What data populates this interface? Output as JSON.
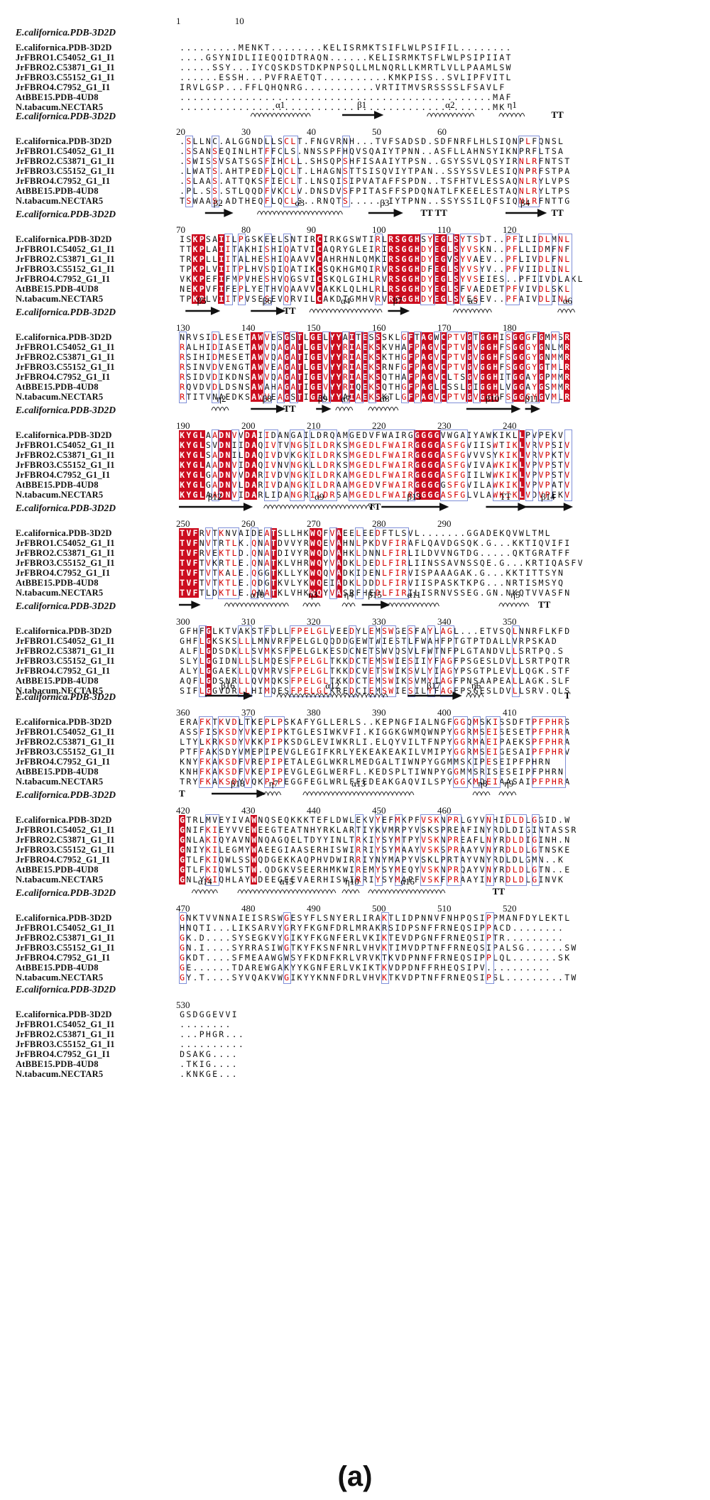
{
  "reference_name": "E.californica.PDB-3D2D",
  "sequence_names": [
    "E.californica.PDB-3D2D",
    "JrFBRO1.C54052_G1_I1",
    "JrFBRO2.C53871_G1_I1",
    "JrFBRO3.C55152_G1_I1",
    "JrFBRO4.C7952_G1_I1",
    "AtBBE15.PDB-4UD8",
    "N.tabacum.NECTAR5"
  ],
  "caption": "(a)",
  "colors": {
    "conserved_bg": "#cc0d1f",
    "similar_text": "#d40000",
    "box_border": "#7f8fd8"
  },
  "blocks": [
    {
      "start": 1,
      "numbers": [
        {
          "pos": 1,
          "label": "1"
        },
        {
          "pos": 10,
          "label": "10"
        }
      ],
      "rows": [
        ".........MENKT........KELISRMKTSIFLWLPSIFIL........",
        "....GSYNIDLIIEQQIDTRAQN......KELISRMKTSFLWLPSIPIIAT",
        ".....SSY...IYCQSKDSTDKPNPSQLLMLNQRLLKMRTLVLLPAAMLSW",
        "......ESSH...PVFRAETQT..........KMKPISS..SVLIPFVITL",
        "IRVLGSP...FFLQHQNRG...........VRTITMVSRSSSSLFSAVLF",
        "................................................MAF",
        "................................................MK"
      ]
    },
    {
      "start": 20,
      "numbers": [
        {
          "pos": 20,
          "label": "20"
        },
        {
          "pos": 30,
          "label": "30"
        },
        {
          "pos": 40,
          "label": "40"
        },
        {
          "pos": 50,
          "label": "50"
        },
        {
          "pos": 60,
          "label": "60"
        }
      ],
      "ss": [
        {
          "kind": "helix",
          "from": 11,
          "to": 19,
          "label": "α1"
        },
        {
          "kind": "strand",
          "from": 25,
          "to": 30,
          "label": "β1"
        },
        {
          "kind": "helix",
          "from": 38,
          "to": 44,
          "label": "α2"
        },
        {
          "kind": "helix",
          "from": 49,
          "to": 52,
          "label": "η1"
        },
        {
          "kind": "tt",
          "from": 57,
          "to": 58,
          "label": "TT"
        }
      ],
      "rows": [
        ".SLLNC.ALGGNDLLSCLT.FNGVRNH...TVFSADSD.SDFNRFLHLSIQNPLFQNSL",
        ".SSANSEQINLHTFFCLS.NNSSPFHQVSQAIYTPNN..ASFLLAHNSYIKNPRFLTSA",
        ".SWISSVSATSGSFIHCLL.SHSQPSHFISAAIYTPSN..GSYSSVLQSYIRNLRFNTST",
        ".LWATS.AHTPEDFLQCLT.LHAGNSTTSISQVIYTPAN..SSYSSVLESIQNPRFSTPA",
        ".SLAAS.ATTQKSFIECLT.LNSQISIPVATAFFSPDN..TSFHTVLESSAQNLRYLVPS",
        ".PL.SS.STLQQDFVKCLV.DNSDVSFPITASFFSPDQNATLFKEELESTAQNLRYLTPS",
        "TSWAAS.ADTHEQFLQCLS..RNQTS......IYTPNN..SSYSSILQFSIQNLRFNTTG"
      ]
    },
    {
      "start": 70,
      "numbers": [
        {
          "pos": 70,
          "label": "70"
        },
        {
          "pos": 80,
          "label": "80"
        },
        {
          "pos": 90,
          "label": "90"
        },
        {
          "pos": 100,
          "label": "100"
        },
        {
          "pos": 110,
          "label": "110"
        },
        {
          "pos": 120,
          "label": "120"
        }
      ],
      "ss": [
        {
          "kind": "strand",
          "from": 4,
          "to": 7,
          "label": "β2"
        },
        {
          "kind": "helix",
          "from": 12,
          "to": 24,
          "label": "α3"
        },
        {
          "kind": "strand",
          "from": 29,
          "to": 33,
          "label": "β3"
        },
        {
          "kind": "tt",
          "from": 37,
          "to": 41,
          "label": "TT TT"
        },
        {
          "kind": "strand",
          "from": 50,
          "to": 55,
          "label": "β4"
        },
        {
          "kind": "tt",
          "from": 57,
          "to": 58,
          "label": "TT"
        }
      ],
      "rows": [
        "ISKPSAIILPGSKEELSNTIRCIRKGSWTIRLRSGGHSYEGLSYTSDT..PFILIDLMNL",
        "TTKPLAIITAKHISHIQATVICAQRYGLEIRIRSGGHDYEGLSYVSKN..PFLLIDMFNF",
        "TRKPLLIITALHESHIQAAVVCAHRHNLQMKIRSGGHDYEGVSYVAEV..PFLIVDLFNL",
        "TPKPLVIITPLHVSQIQATIKCSQKHGMQIRVRSGGHDFEGLSYVSYV..PFVIIDLINL",
        "VKKPEFIFMPVHESHVQGSVICSKQLGIHLRVRSGGHDYEGLSYVSEIES..PFIIVDLAKL",
        "NEKPVFIFEPLYETHVQAAVVCAKKLQLHLRLRSGGHDYEGLSFVAEDETPFVIVDLSKL",
        "TPKPLVIITPVSESEVQRVILCAKDTGMHVRVRSGGHDYEGLSYESEV..PFAIVDLINL"
      ]
    },
    {
      "start": 130,
      "numbers": [
        {
          "pos": 130,
          "label": "130"
        },
        {
          "pos": 140,
          "label": "140"
        },
        {
          "pos": 150,
          "label": "150"
        },
        {
          "pos": 160,
          "label": "160"
        },
        {
          "pos": 170,
          "label": "170"
        },
        {
          "pos": 180,
          "label": "180"
        }
      ],
      "ss": [
        {
          "kind": "strand",
          "from": 1,
          "to": 5,
          "label": "β5"
        },
        {
          "kind": "strand",
          "from": 11,
          "to": 15,
          "label": "β6"
        },
        {
          "kind": "tt",
          "from": 16,
          "to": 17,
          "label": "TT"
        },
        {
          "kind": "helix",
          "from": 20,
          "to": 30,
          "label": "α4"
        },
        {
          "kind": "strand",
          "from": 32,
          "to": 34,
          "label": "β7"
        },
        {
          "kind": "helix",
          "from": 42,
          "to": 47,
          "label": "α5"
        },
        {
          "kind": "helix",
          "from": 58,
          "to": 60,
          "label": "α6"
        }
      ],
      "rows": [
        "NRVSIDLESETAWVESGSTLGELYYAITESSSKLGFTAGWCPTVGTGGHISGGGFGMMSR",
        "RALHIDIASETAWVQAGATLGEVYYRIAEKSKVHAFPAGVCPTVGVGGHFSGGGYGNLMR",
        "RSIHIDMESETAWVQAGATIGEVYYRIAEKSKTHGFPAGVCPTVGVGGHFSGGGYGNMMR",
        "RSINVDVENGTAWVEAGATLGEVYYRIAEKSRNFGFPAGVCPTVGVGGHFSGGGYGTMLR",
        "RSIDVDIKDNSAWVQAGATIGEVYYRIAEKSQTHAFPAGVCLTSGVGGHITGGAYGPMMR",
        "RQVDVDLDSNSAWAHAGATIGEVYYRIQEKSQTHGFPAGLCSSLGIGGHLVGGAYGSMMR",
        "RTITVNAEDKSAWVEAGSTIGELYYAIAEKSKTLGFPAGVCPTVGVGGHFSGGGYGVMLR"
      ]
    },
    {
      "start": 190,
      "numbers": [
        {
          "pos": 190,
          "label": "190"
        },
        {
          "pos": 200,
          "label": "200"
        },
        {
          "pos": 210,
          "label": "210"
        },
        {
          "pos": 220,
          "label": "220"
        },
        {
          "pos": 230,
          "label": "230"
        },
        {
          "pos": 240,
          "label": "240"
        }
      ],
      "ss": [
        {
          "kind": "helix",
          "from": 5,
          "to": 7,
          "label": "η2"
        },
        {
          "kind": "strand",
          "from": 11,
          "to": 15,
          "label": "β8"
        },
        {
          "kind": "tt",
          "from": 16,
          "to": 17,
          "label": "TT"
        },
        {
          "kind": "strand",
          "from": 21,
          "to": 22,
          "label": "β9"
        },
        {
          "kind": "helix",
          "from": 24,
          "to": 26,
          "label": "α7"
        },
        {
          "kind": "helix",
          "from": 29,
          "to": 33,
          "label": "α8"
        },
        {
          "kind": "strand",
          "from": 44,
          "to": 51,
          "label": "β10"
        },
        {
          "kind": "strand",
          "from": 53,
          "to": 54,
          "label": "β11"
        }
      ],
      "rows": [
        "KYGLAADNVVDAIIDANGAILDRQAMGEDVFWAIRGGGGGVWGAIYAWKIKLLPVPEKV",
        "KYGLSVDNIIDAQIVTVNGSILDRKSMGEDLFWAIRGGGGASFGVIISWTIKLVRVPSIV",
        "KYGLSADNILDAQIVDVKGKILDRKSMGEDLFWAIRGGGGASFGVVVSYKIKLVRVPKTV",
        "KYGLAADNVIDAQIVNVNGKLLDRKSMGEDLFWAIRGGGGASFGVIVAWKIKLVPVPSTV",
        "KYGLGADNVVDARIVDVNGKILDRKAMGEDLFWAIRGGGGASFGIILWWKIKLVPVPSTV",
        "KYGLGADNVLDARIVDANGKILDRAAMGEDVFWAIRGGGGGSFGVILAWKIKLVPVPATV",
        "KYGLAADNVIDARLIDANGRILDRSAMGEDLFWAIRGGGGASFGLVLAWKIKLVDVPEKV"
      ]
    },
    {
      "start": 250,
      "numbers": [
        {
          "pos": 250,
          "label": "250"
        },
        {
          "pos": 260,
          "label": "260"
        },
        {
          "pos": 270,
          "label": "270"
        },
        {
          "pos": 280,
          "label": "280"
        },
        {
          "pos": 290,
          "label": "290"
        }
      ],
      "ss": [
        {
          "kind": "strand",
          "from": 0,
          "to": 10,
          "label": "β12"
        },
        {
          "kind": "helix",
          "from": 13,
          "to": 29,
          "label": "α9"
        },
        {
          "kind": "tt",
          "from": 29,
          "to": 30,
          "label": "TT"
        },
        {
          "kind": "strand",
          "from": 31,
          "to": 40,
          "label": "β13"
        },
        {
          "kind": "strand",
          "from": 47,
          "to": 52,
          "label": "TT"
        },
        {
          "kind": "strand",
          "from": 53,
          "to": 59,
          "label": "β14"
        }
      ],
      "rows": [
        "TVFRVTKNVAIDEATSLLHKWQFVAEELEEDFTLSVL.......GGADEKQVWLTML",
        "TVFNVTRTLK.QNATDVVYRWQEVAHNLPKDVFIRAFLQAVDGSQK.G...KKTIQVIFI",
        "TVFRVEKTLD.QNATDIVYRWQDVAHKLDNNLFIRLILDVVNGTDG.....QKTGRATFF",
        "TVFTVKRTLE.QNATKLVHRWQYVADKLDEDLFIRLIINSSAVNSSQE.G...KRTIQASFV",
        "TVFTVTKALE.QGGTKLLYKWQQVADKIDENLFIRVISPAAAGAK.G...KKTITTSYN",
        "TVFTVTKTLE.QDGTKVLYKWQEIADKLDDDLFIRVIISPASKTKPG...NRTISMSYQ",
        "TVFTLDKTLE.QNATKLVHKWQYVASRFHEDLFIRILISRNVSSEG.GN.NKQTVVASFN"
      ]
    },
    {
      "start": 300,
      "numbers": [
        {
          "pos": 300,
          "label": "300"
        },
        {
          "pos": 310,
          "label": "310"
        },
        {
          "pos": 320,
          "label": "320"
        },
        {
          "pos": 330,
          "label": "330"
        },
        {
          "pos": 340,
          "label": "340"
        },
        {
          "pos": 350,
          "label": "350"
        }
      ],
      "ss": [
        {
          "kind": "strand",
          "from": 0,
          "to": 2,
          "label": ""
        },
        {
          "kind": "helix",
          "from": 7,
          "to": 16,
          "label": "α10"
        },
        {
          "kind": "helix",
          "from": 19,
          "to": 21,
          "label": "η3"
        },
        {
          "kind": "helix",
          "from": 25,
          "to": 26,
          "label": "η4"
        },
        {
          "kind": "strand",
          "from": 28,
          "to": 31,
          "label": "β15"
        },
        {
          "kind": "helix",
          "from": 32,
          "to": 39,
          "label": "α11"
        },
        {
          "kind": "helix",
          "from": 49,
          "to": 53,
          "label": "η5"
        },
        {
          "kind": "tt",
          "from": 55,
          "to": 56,
          "label": "TT"
        }
      ],
      "rows": [
        "GFHFGLKTVAKSTFDLLFPELGLVEEDYLEMSWGESFAYLAGL...ETVSQLNNRFLKFD",
        "GHFLGKSKSLLLMNVRFPELGLQQDDGEWTWIESTLFWAHFPTGTPTDALLVRPSKAD",
        "ALFLGDSDKLLSVMKSFPELGLKESDCNETSWVQSVLFWTNFPLGTANDVLLSRTPQ.S",
        "SLYLGGIDNLLSLMQESFPELGLTKKDCTEMSWIESIIYFAGFPSGESLDVLLSRTPQTR",
        "ALYLGGAEKLLQVMRVSFPELGLTKKDCVETSWIKSVLYIAGYPSGTPLEVLLQGK.STF",
        "AQFLGDSNRLLQVMQKSFPELGLTKKDCTEMSWIKSVMYIAGFPNSAAPEALLAGK.SLF",
        "SIFLGGVDRLLHIMQESFPELGLKREDCIEMSWIESILYFAGFPSGESLDVLLSRV.QLS"
      ]
    },
    {
      "start": 360,
      "numbers": [
        {
          "pos": 360,
          "label": "360"
        },
        {
          "pos": 370,
          "label": "370"
        },
        {
          "pos": 380,
          "label": "380"
        },
        {
          "pos": 390,
          "label": "390"
        },
        {
          "pos": 400,
          "label": "400"
        },
        {
          "pos": 410,
          "label": "410"
        }
      ],
      "ss": [
        {
          "kind": "strand",
          "from": 4,
          "to": 10,
          "label": "β16"
        },
        {
          "kind": "helix",
          "from": 15,
          "to": 31,
          "label": "α12"
        },
        {
          "kind": "strand",
          "from": 35,
          "to": 42,
          "label": "β17"
        },
        {
          "kind": "helix",
          "from": 44,
          "to": 46,
          "label": "η6"
        },
        {
          "kind": "tt",
          "from": 59,
          "to": 59,
          "label": "T"
        }
      ],
      "rows": [
        "ERAFKTKVDLTKEPLPSKAFYGLLERLS..KEPNGFIALNGFGGQMSKISSDFTPFPHRS",
        "ASSFISKSDYVKEPIPKTGLESIWKVFI.KIGGKGWMQWNPYGGRMSEISESETPFPHRA",
        "LTYLKRKSDYVKKPIPKSDGLEVIWKRLI.ELQYVILTFNPYGGRMAEIPAEKSPFPHRA",
        "PTFFAKSDYVMEPIPEVGLEGIFKRLYEKEAKEAKILVMIPYGGRMSEIGESAIPFPHRV",
        "KNYFKAKSDFVREPIPETALEGLWKRLMEDGALTIWNPYGGMMSKIPESEIPFPHRN",
        "KNHFKAKSDFVKEPIPEVGLEGLWERFL.KEDSPLTIWNPYGGMMSRISESEIPFPHRN",
        "TRYFKAKSDYVQKPIPEGGFEGLWRLFFEDEAKGAQVILSPYGGKMDEIAASAIPFPHRA"
      ]
    },
    {
      "start": 420,
      "numbers": [
        {
          "pos": 420,
          "label": "420"
        },
        {
          "pos": 430,
          "label": "430"
        },
        {
          "pos": 440,
          "label": "440"
        },
        {
          "pos": 450,
          "label": "450"
        },
        {
          "pos": 460,
          "label": "460"
        }
      ],
      "ss": [
        {
          "kind": "tt",
          "from": 0,
          "to": 0,
          "label": "T"
        },
        {
          "kind": "strand",
          "from": 5,
          "to": 12,
          "label": "β18"
        },
        {
          "kind": "helix",
          "from": 13,
          "to": 15,
          "label": "η7"
        },
        {
          "kind": "helix",
          "from": 19,
          "to": 35,
          "label": "α13"
        },
        {
          "kind": "helix",
          "from": 45,
          "to": 47,
          "label": "η8"
        },
        {
          "kind": "helix",
          "from": 49,
          "to": 51,
          "label": "η9"
        }
      ],
      "rows": [
        "GTRLMVEYIVAWNQSEQKKKTEFLDWLEKVYEFMKPFVSKNPRLGYVNHIDLDLGGID.W",
        "GNIFKIEYVVEWEEGTEATNHYRKLARTIYKVMRPYVSKSPREAFINYRDLDIGINTASSR",
        "GNLAKIQYAVNWNQAGQELTDYYINLTRKIYSYMTPYVSKNPREAFLNYRDLDIGINH.N",
        "GNIYKILEGMYWAEEGIAASERHISWIRRIYSYMAAYVSKSPRAAYVNYRDLDLGTNSKE",
        "GTLFKIQWLSSWQDGEKKAQPHVDWIRRIYNYMAPYVSKLPRTAYVNYRDLDLGMN..K",
        "GTLFKIQWLSTW.QDGKVSEERHMKWIREMYSYMEQYVSKNPRQAYVNYRDLDLGTN..E",
        "GNLYKIQHLAYWDEEGEEVAERHISWIRRIYSYMAPFVSKFPRAAYINYRDLDLGINVK"
      ]
    },
    {
      "start": 470,
      "numbers": [
        {
          "pos": 470,
          "label": "470"
        },
        {
          "pos": 480,
          "label": "480"
        },
        {
          "pos": 490,
          "label": "490"
        },
        {
          "pos": 500,
          "label": "500"
        },
        {
          "pos": 510,
          "label": "510"
        },
        {
          "pos": 520,
          "label": "520"
        }
      ],
      "ss": [
        {
          "kind": "helix",
          "from": 2,
          "to": 5,
          "label": "α14"
        },
        {
          "kind": "helix",
          "from": 9,
          "to": 23,
          "label": "α15"
        },
        {
          "kind": "helix",
          "from": 25,
          "to": 27,
          "label": "η10"
        },
        {
          "kind": "helix",
          "from": 29,
          "to": 40,
          "label": "α16"
        },
        {
          "kind": "tt",
          "from": 48,
          "to": 49,
          "label": "TT"
        }
      ],
      "rows": [
        "GNKTVVNNAIEISRSWGESYFLSNYERLIRAKTLIDPNNVFNHPQSIPPMANFDYLEKTL",
        "HNQTI...LIKSARVYGRYFKGNFDRLMRAKRSIDPSNFFRNEQSIPPACD........",
        "GK.D....SYSEGKVYGIKYFKGNFERLVKIKTEVDPGNFFRNEQSIPTR.........",
        "GN.I....SYRRASIWGTKYFKSNFNRLVHVKTIMVDPTNFFRNEQSIPALSG......SW",
        "GKDT....SFMEAAWGWSYFKDNFKRLVRVKTKVDPNNFFRNEQSIPPLQL.......SK",
        "GE......TDAREWGAKYYKGNFERLVKIKTKVDPDNFFRHEQSIPV..........",
        "GY.T....SYVQAKVWGIKYYKNNFDRLVHVKTKVDPTNFFRNEQSIPSL.........TW"
      ]
    },
    {
      "start": 530,
      "numbers": [
        {
          "pos": 530,
          "label": "530"
        }
      ],
      "rows": [
        "GSDGGEVVI",
        "........",
        "...PHGR...",
        "..........",
        "DSAKG....",
        ".TKIG....",
        ".KNKGE..."
      ]
    }
  ]
}
